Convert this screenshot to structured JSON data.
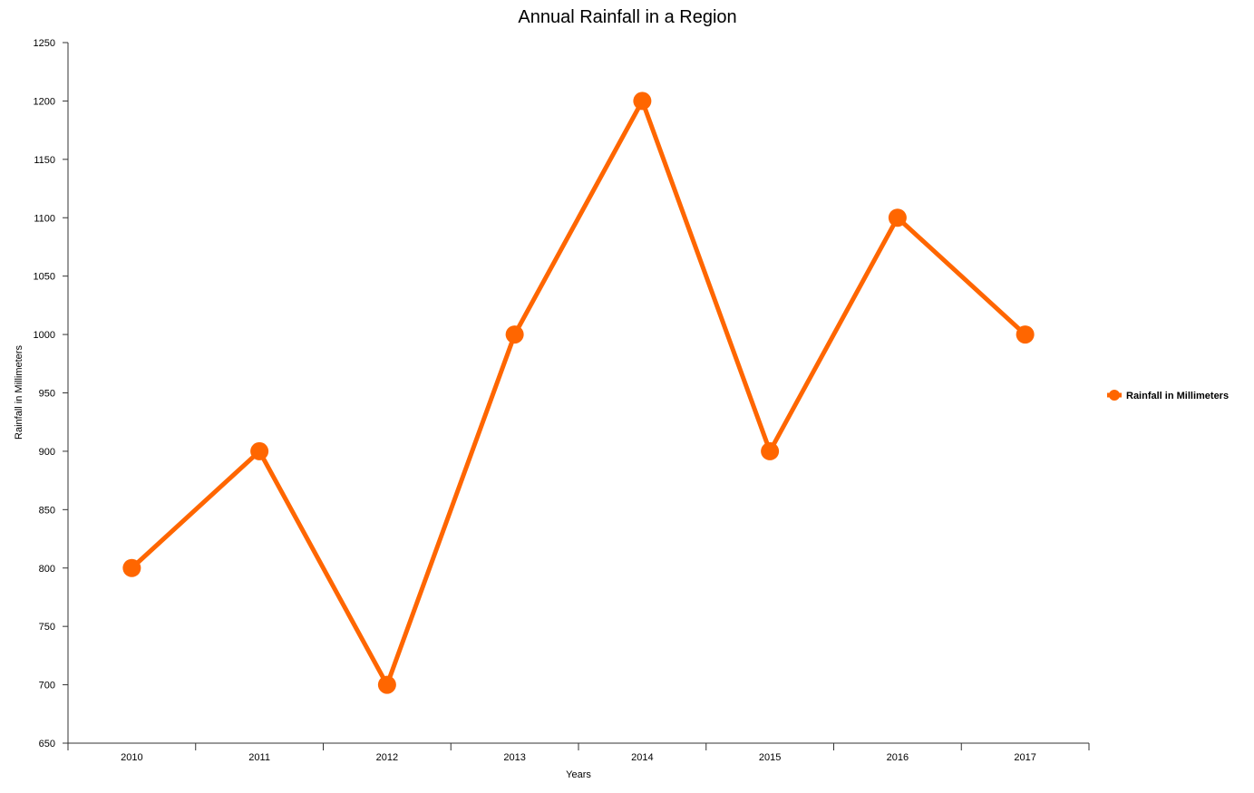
{
  "chart_data": {
    "type": "line",
    "title": "Annual Rainfall in a Region",
    "xlabel": "Years",
    "ylabel": "Rainfall in Millimeters",
    "categories": [
      "2010",
      "2011",
      "2012",
      "2013",
      "2014",
      "2015",
      "2016",
      "2017"
    ],
    "series": [
      {
        "name": "Rainfall in Millimeters",
        "values": [
          800,
          900,
          700,
          1000,
          1200,
          900,
          1100,
          1000
        ],
        "color": "#ff6600"
      }
    ],
    "ylim": [
      650,
      1250
    ],
    "yticks": [
      650,
      700,
      750,
      800,
      850,
      900,
      950,
      1000,
      1050,
      1100,
      1150,
      1200,
      1250
    ],
    "grid": false,
    "legend_position": "right"
  }
}
